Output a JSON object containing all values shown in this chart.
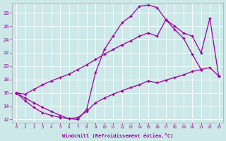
{
  "xlabel": "Windchill (Refroidissement éolien,°C)",
  "bg_color": "#cce8e8",
  "line_color": "#990099",
  "xlim": [
    -0.5,
    23.5
  ],
  "ylim": [
    11.5,
    29.5
  ],
  "yticks": [
    12,
    14,
    16,
    18,
    20,
    22,
    24,
    26,
    28
  ],
  "xticks": [
    0,
    1,
    2,
    3,
    4,
    5,
    6,
    7,
    8,
    9,
    10,
    11,
    12,
    13,
    14,
    15,
    16,
    17,
    18,
    19,
    20,
    21,
    22,
    23
  ],
  "line1_x": [
    0,
    1,
    2,
    3,
    4,
    5,
    6,
    7,
    8,
    9,
    10,
    11,
    12,
    13,
    14,
    15,
    16,
    17,
    18,
    19,
    20,
    21
  ],
  "line1_y": [
    16,
    15.2,
    14.5,
    13.8,
    13.2,
    12.6,
    12.1,
    12.0,
    13.5,
    19.0,
    22.5,
    24.5,
    26.5,
    27.5,
    29.0,
    29.2,
    28.8,
    27.0,
    25.5,
    24.2,
    21.8,
    19.5
  ],
  "line2_x": [
    0,
    1,
    2,
    3,
    4,
    5,
    6,
    7,
    8,
    9,
    10,
    11,
    12,
    13,
    14,
    15,
    16,
    17,
    18,
    19,
    20,
    21,
    22,
    23
  ],
  "line2_y": [
    16.0,
    15.8,
    16.5,
    17.2,
    17.8,
    18.3,
    18.8,
    19.5,
    20.2,
    21.0,
    21.8,
    22.5,
    23.2,
    23.8,
    24.5,
    25.0,
    24.5,
    27.0,
    26.0,
    25.0,
    24.5,
    22.0,
    27.2,
    18.5
  ],
  "line3_x": [
    0,
    1,
    2,
    3,
    4,
    5,
    6,
    7,
    8,
    9,
    10,
    11,
    12,
    13,
    14,
    15,
    16,
    17,
    18,
    19,
    20,
    21,
    22,
    23
  ],
  "line3_y": [
    16.0,
    14.8,
    13.8,
    13.0,
    12.6,
    12.3,
    12.1,
    12.3,
    13.2,
    14.5,
    15.2,
    15.8,
    16.3,
    16.8,
    17.2,
    17.8,
    17.5,
    17.9,
    18.3,
    18.7,
    19.2,
    19.5,
    19.8,
    18.5
  ]
}
